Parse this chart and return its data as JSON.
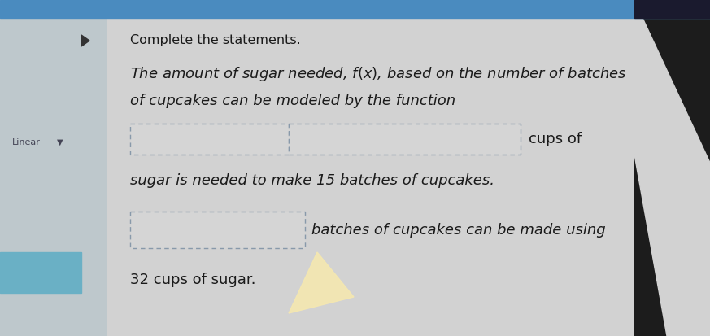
{
  "title": "Complete the statements.",
  "line1": "The amount of sugar needed, $f(x)$, based on the number of batches",
  "line2": "of cupcakes can be modeled by the function",
  "line3_suffix": "cups of",
  "line4": "sugar is needed to make 15 batches of cupcakes.",
  "line5_suffix": "batches of cupcakes can be made using",
  "line6": "32 cups of sugar.",
  "bg_main": "#cecece",
  "bg_left_top": "#b8c4cc",
  "bg_left_bottom": "#7ab0c0",
  "top_bar_color": "#4a8bbf",
  "top_bar_right": "#1a1a2e",
  "text_color": "#1a1a1a",
  "dashed_color": "#8899aa",
  "box_fill": "#d5d5d5",
  "title_fontsize": 11.5,
  "body_fontsize": 13,
  "cursor_color": "#f5e8b0"
}
